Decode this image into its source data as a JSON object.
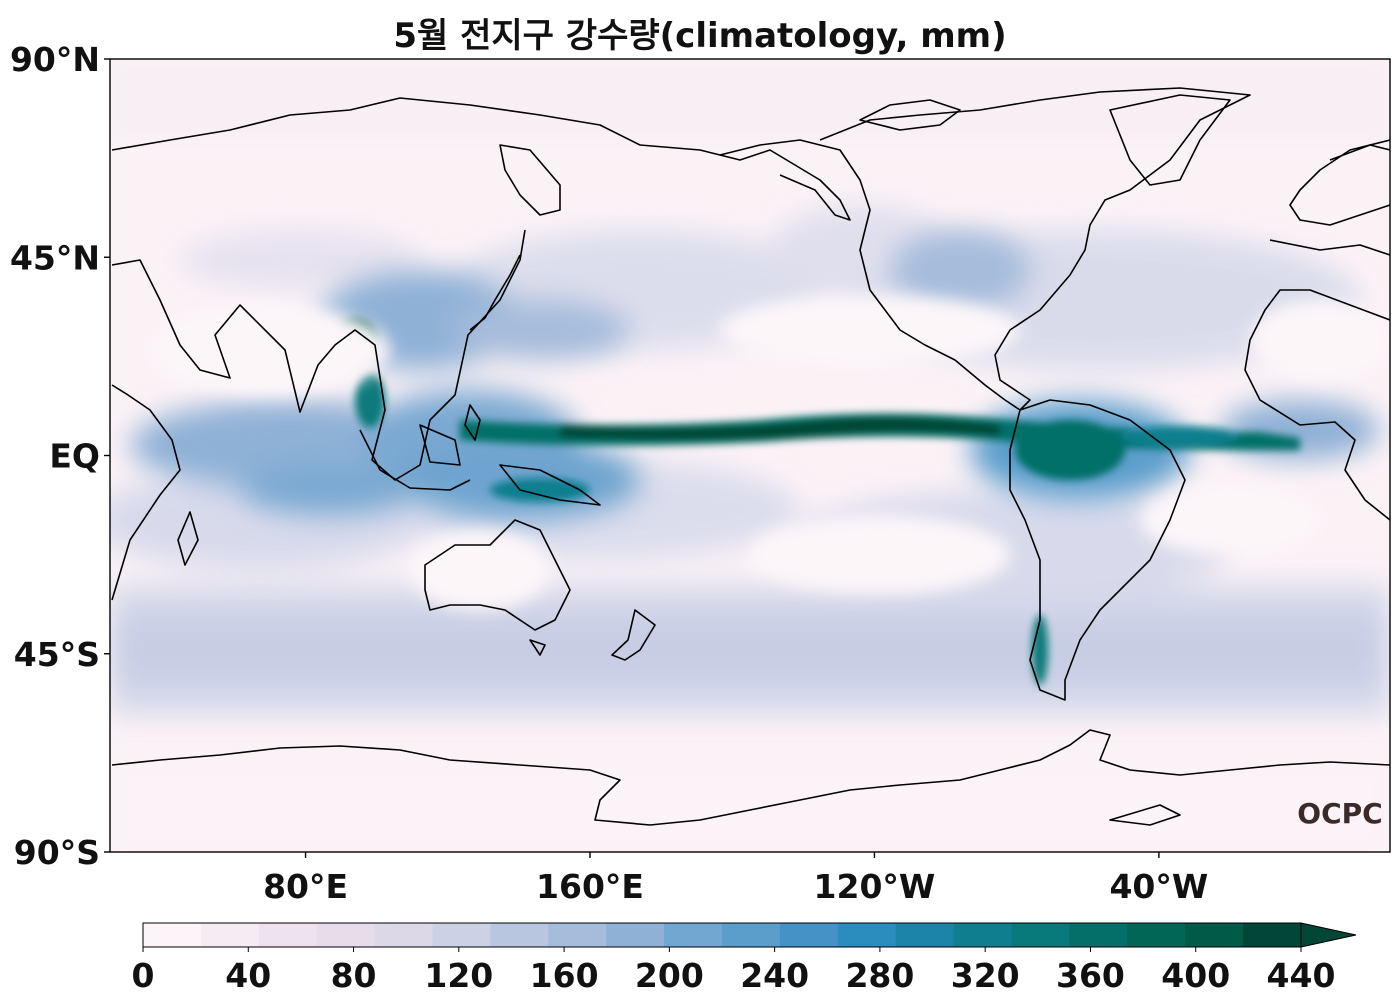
{
  "title": "5월 전지구 강수량(climatology, mm)",
  "lat_ticks": [
    "90°N",
    "45°N",
    "EQ",
    "45°S",
    "90°S"
  ],
  "lon_ticks": [
    "80°E",
    "160°E",
    "120°W",
    "40°W"
  ],
  "colorbar": {
    "labels": [
      "0",
      "40",
      "80",
      "120",
      "160",
      "200",
      "240",
      "280",
      "320",
      "360",
      "400",
      "440"
    ],
    "colors": [
      "#fcf4f8",
      "#f5ebf3",
      "#eee2ee",
      "#e6dcea",
      "#dcd8e8",
      "#ccd2e5",
      "#b9c6e0",
      "#a6bcdb",
      "#8fb1d6",
      "#72a7d1",
      "#5b9ecc",
      "#4592c6",
      "#2b8cbe",
      "#1c84a8",
      "#0f7f8f",
      "#087a7c",
      "#036f68",
      "#016656",
      "#015a48",
      "#014636"
    ],
    "extend": "max"
  },
  "logo_text": "OCPC"
}
